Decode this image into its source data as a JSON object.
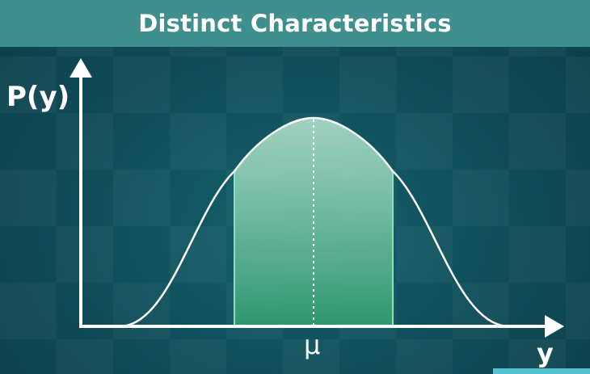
{
  "header": {
    "title": "Distinct Characteristics"
  },
  "diagram": {
    "y_axis_label": "P(y)",
    "x_axis_label": "y",
    "mean_label": "μ"
  },
  "colors": {
    "header_bg": "#3f8f8f",
    "background": "#0f4a55",
    "curve": "#ffffff",
    "shaded_region": "#3fae88"
  }
}
